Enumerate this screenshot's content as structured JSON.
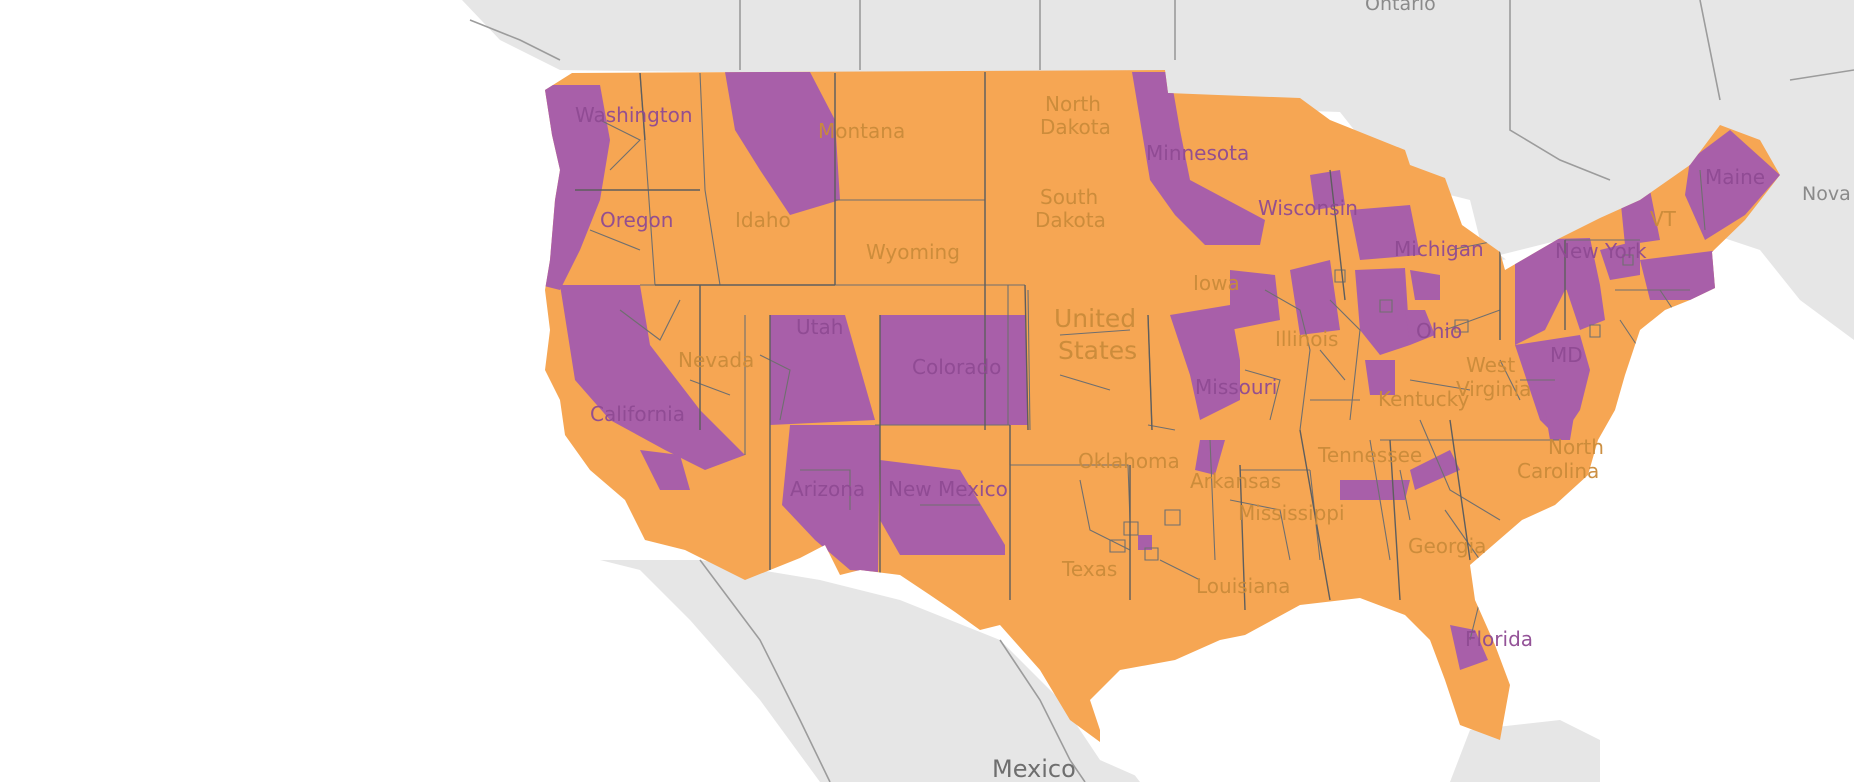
{
  "map": {
    "party_colors": {
      "orange": "#f6a653",
      "purple": "#a85fa9"
    },
    "base_colors": {
      "land": "#e6e6e6",
      "water": "#ffffff",
      "border": "#9c9c9c"
    },
    "base_labels": {
      "canada_region": "Ontario",
      "neighbor": "Mexico",
      "nova_scotia": "Nova S"
    },
    "country_label": [
      "United",
      "States"
    ],
    "state_labels": [
      "Washington",
      "Oregon",
      "Montana",
      "Idaho",
      "Wyoming",
      "Nevada",
      "Utah",
      "Colorado",
      "California",
      "Arizona",
      "New Mexico",
      "North",
      "Dakota",
      "South",
      "Dakota",
      "Minnesota",
      "Wisconsin",
      "Michigan",
      "Iowa",
      "Illinois",
      "Missouri",
      "Oklahoma",
      "Arkansas",
      "Texas",
      "Louisiana",
      "Mississippi",
      "Tennessee",
      "Kentucky",
      "Ohio",
      "West",
      "Virginia",
      "Georgia",
      "Florida",
      "New York",
      "Maine",
      "VT",
      "MD",
      "North",
      "Carolina"
    ]
  }
}
